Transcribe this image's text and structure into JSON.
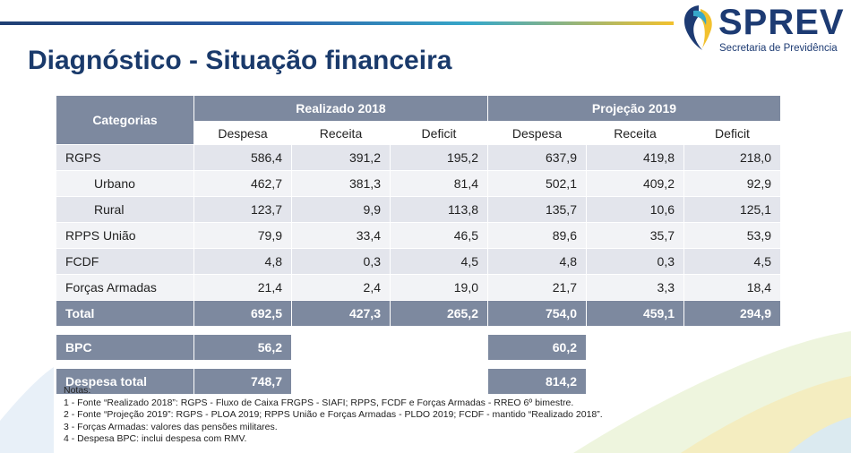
{
  "brand": {
    "name": "SPREV",
    "subtitle": "Secretaria de Previdência"
  },
  "page": {
    "title": "Diagnóstico - Situação financeira"
  },
  "table": {
    "category_header": "Categorias",
    "groups": [
      "Realizado 2018",
      "Projeção 2019"
    ],
    "sub_headers": [
      "Despesa",
      "Receita",
      "Deficit",
      "Despesa",
      "Receita",
      "Deficit"
    ],
    "rows": [
      {
        "label": "RGPS",
        "values": [
          "586,4",
          "391,2",
          "195,2",
          "637,9",
          "419,8",
          "218,0"
        ]
      },
      {
        "label": "Urbano",
        "values": [
          "462,7",
          "381,3",
          "81,4",
          "502,1",
          "409,2",
          "92,9"
        ]
      },
      {
        "label": "Rural",
        "values": [
          "123,7",
          "9,9",
          "113,8",
          "135,7",
          "10,6",
          "125,1"
        ]
      },
      {
        "label": "RPPS União",
        "values": [
          "79,9",
          "33,4",
          "46,5",
          "89,6",
          "35,7",
          "53,9"
        ]
      },
      {
        "label": "FCDF",
        "values": [
          "4,8",
          "0,3",
          "4,5",
          "4,8",
          "0,3",
          "4,5"
        ]
      },
      {
        "label": "Forças Armadas",
        "values": [
          "21,4",
          "2,4",
          "19,0",
          "21,7",
          "3,3",
          "18,4"
        ]
      }
    ],
    "total": {
      "label": "Total",
      "values": [
        "692,5",
        "427,3",
        "265,2",
        "754,0",
        "459,1",
        "294,9"
      ]
    },
    "bpc": {
      "label": "BPC",
      "realizado": "56,2",
      "projecao": "60,2"
    },
    "despesa_total": {
      "label": "Despesa total",
      "realizado": "748,7",
      "projecao": "814,2"
    }
  },
  "notes": {
    "heading": "Notas:",
    "items": [
      "1 - Fonte “Realizado 2018”: RGPS - Fluxo de Caixa FRGPS - SIAFI; RPPS, FCDF e Forças Armadas - RREO 6º bimestre.",
      "2 - Fonte “Projeção 2019”: RGPS - PLOA 2019; RPPS União e Forças Armadas - PLDO 2019; FCDF - mantido “Realizado 2018”.",
      "3 -  Forças Armadas: valores das pensões militares.",
      "4 - Despesa BPC: inclui despesa com RMV."
    ]
  },
  "colors": {
    "header": "#7d899f",
    "title": "#1a3a6b",
    "brand": "#1d3b73",
    "row_odd": "#e3e5ec",
    "row_even": "#f2f3f6"
  }
}
